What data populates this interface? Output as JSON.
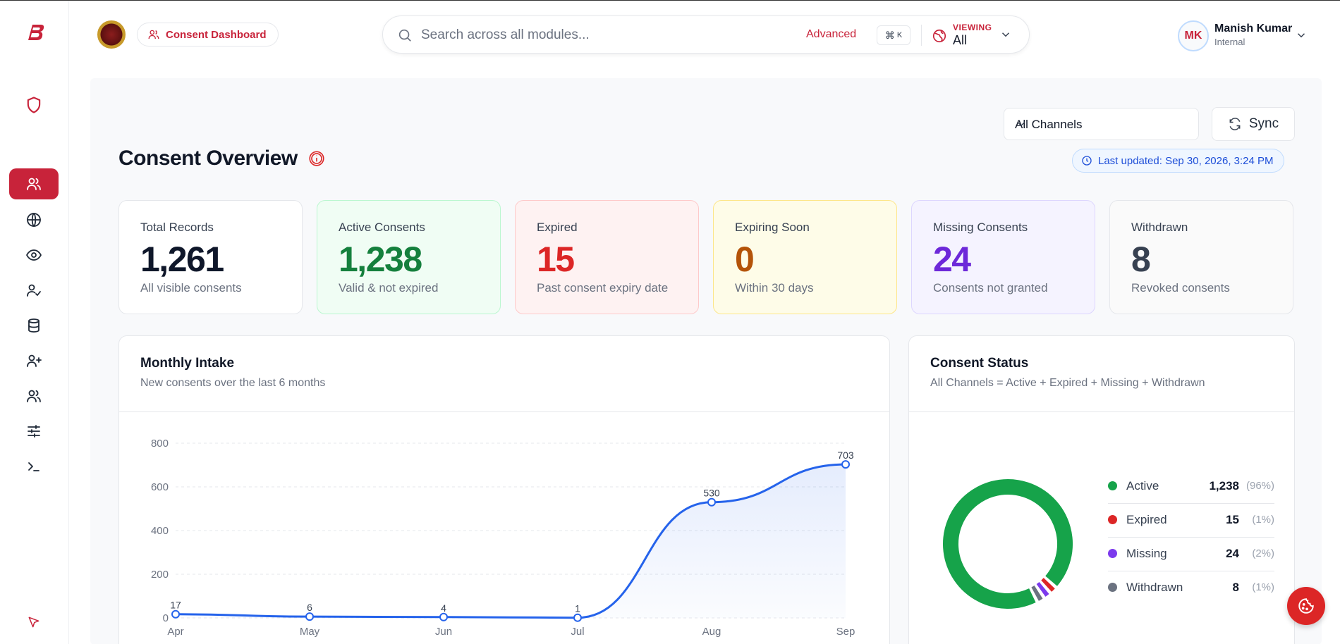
{
  "header": {
    "breadcrumb_label": "Consent Dashboard",
    "search_placeholder": "Search across all modules...",
    "advanced_label": "Advanced",
    "shortcut_cmd": "⌘",
    "shortcut_key": "K",
    "viewing_label": "VIEWING",
    "viewing_value": "All",
    "user_initials": "MK",
    "user_name": "Manish Kumar",
    "user_role": "Internal"
  },
  "page": {
    "title": "Consent Overview",
    "channel_select": "All Channels",
    "sync_label": "Sync",
    "last_updated": "Last updated: Sep 30, 2026, 3:24 PM"
  },
  "stats": [
    {
      "label": "Total Records",
      "value": "1,261",
      "sub": "All visible consents"
    },
    {
      "label": "Active Consents",
      "value": "1,238",
      "sub": "Valid & not expired"
    },
    {
      "label": "Expired",
      "value": "15",
      "sub": "Past consent expiry date"
    },
    {
      "label": "Expiring Soon",
      "value": "0",
      "sub": "Within 30 days"
    },
    {
      "label": "Missing Consents",
      "value": "24",
      "sub": "Consents not granted"
    },
    {
      "label": "Withdrawn",
      "value": "8",
      "sub": "Revoked consents"
    }
  ],
  "intake": {
    "title": "Monthly Intake",
    "subtitle": "New consents over the last 6 months"
  },
  "status": {
    "title": "Consent Status",
    "subtitle": "All Channels = Active + Expired + Missing + Withdrawn",
    "legend": [
      {
        "name": "Active",
        "value": "1,238",
        "pct": "(96%)",
        "color": "#16a34a"
      },
      {
        "name": "Expired",
        "value": "15",
        "pct": "(1%)",
        "color": "#dc2626"
      },
      {
        "name": "Missing",
        "value": "24",
        "pct": "(2%)",
        "color": "#7c3aed"
      },
      {
        "name": "Withdrawn",
        "value": "8",
        "pct": "(1%)",
        "color": "#6b7280"
      }
    ]
  },
  "chart_data": [
    {
      "type": "area",
      "title": "Monthly Intake",
      "subtitle": "New consents over the last 6 months",
      "categories": [
        "Apr",
        "May",
        "Jun",
        "Jul",
        "Aug",
        "Sep"
      ],
      "values": [
        17,
        6,
        4,
        1,
        530,
        703
      ],
      "yticks": [
        0,
        200,
        400,
        600,
        800
      ],
      "ylim": [
        0,
        800
      ],
      "grid": true,
      "color": "#2563eb"
    },
    {
      "type": "pie",
      "title": "Consent Status",
      "labels": [
        "Active",
        "Expired",
        "Missing",
        "Withdrawn"
      ],
      "values": [
        1238,
        15,
        24,
        8
      ],
      "colors": [
        "#16a34a",
        "#dc2626",
        "#7c3aed",
        "#6b7280"
      ]
    }
  ],
  "icons": {
    "sidebar": [
      "shield-icon",
      "users-icon",
      "globe-icon",
      "eye-icon",
      "user-check-icon",
      "database-icon",
      "user-plus-icon",
      "users-group-icon",
      "sliders-icon",
      "terminal-icon",
      "cursor-icon"
    ]
  }
}
